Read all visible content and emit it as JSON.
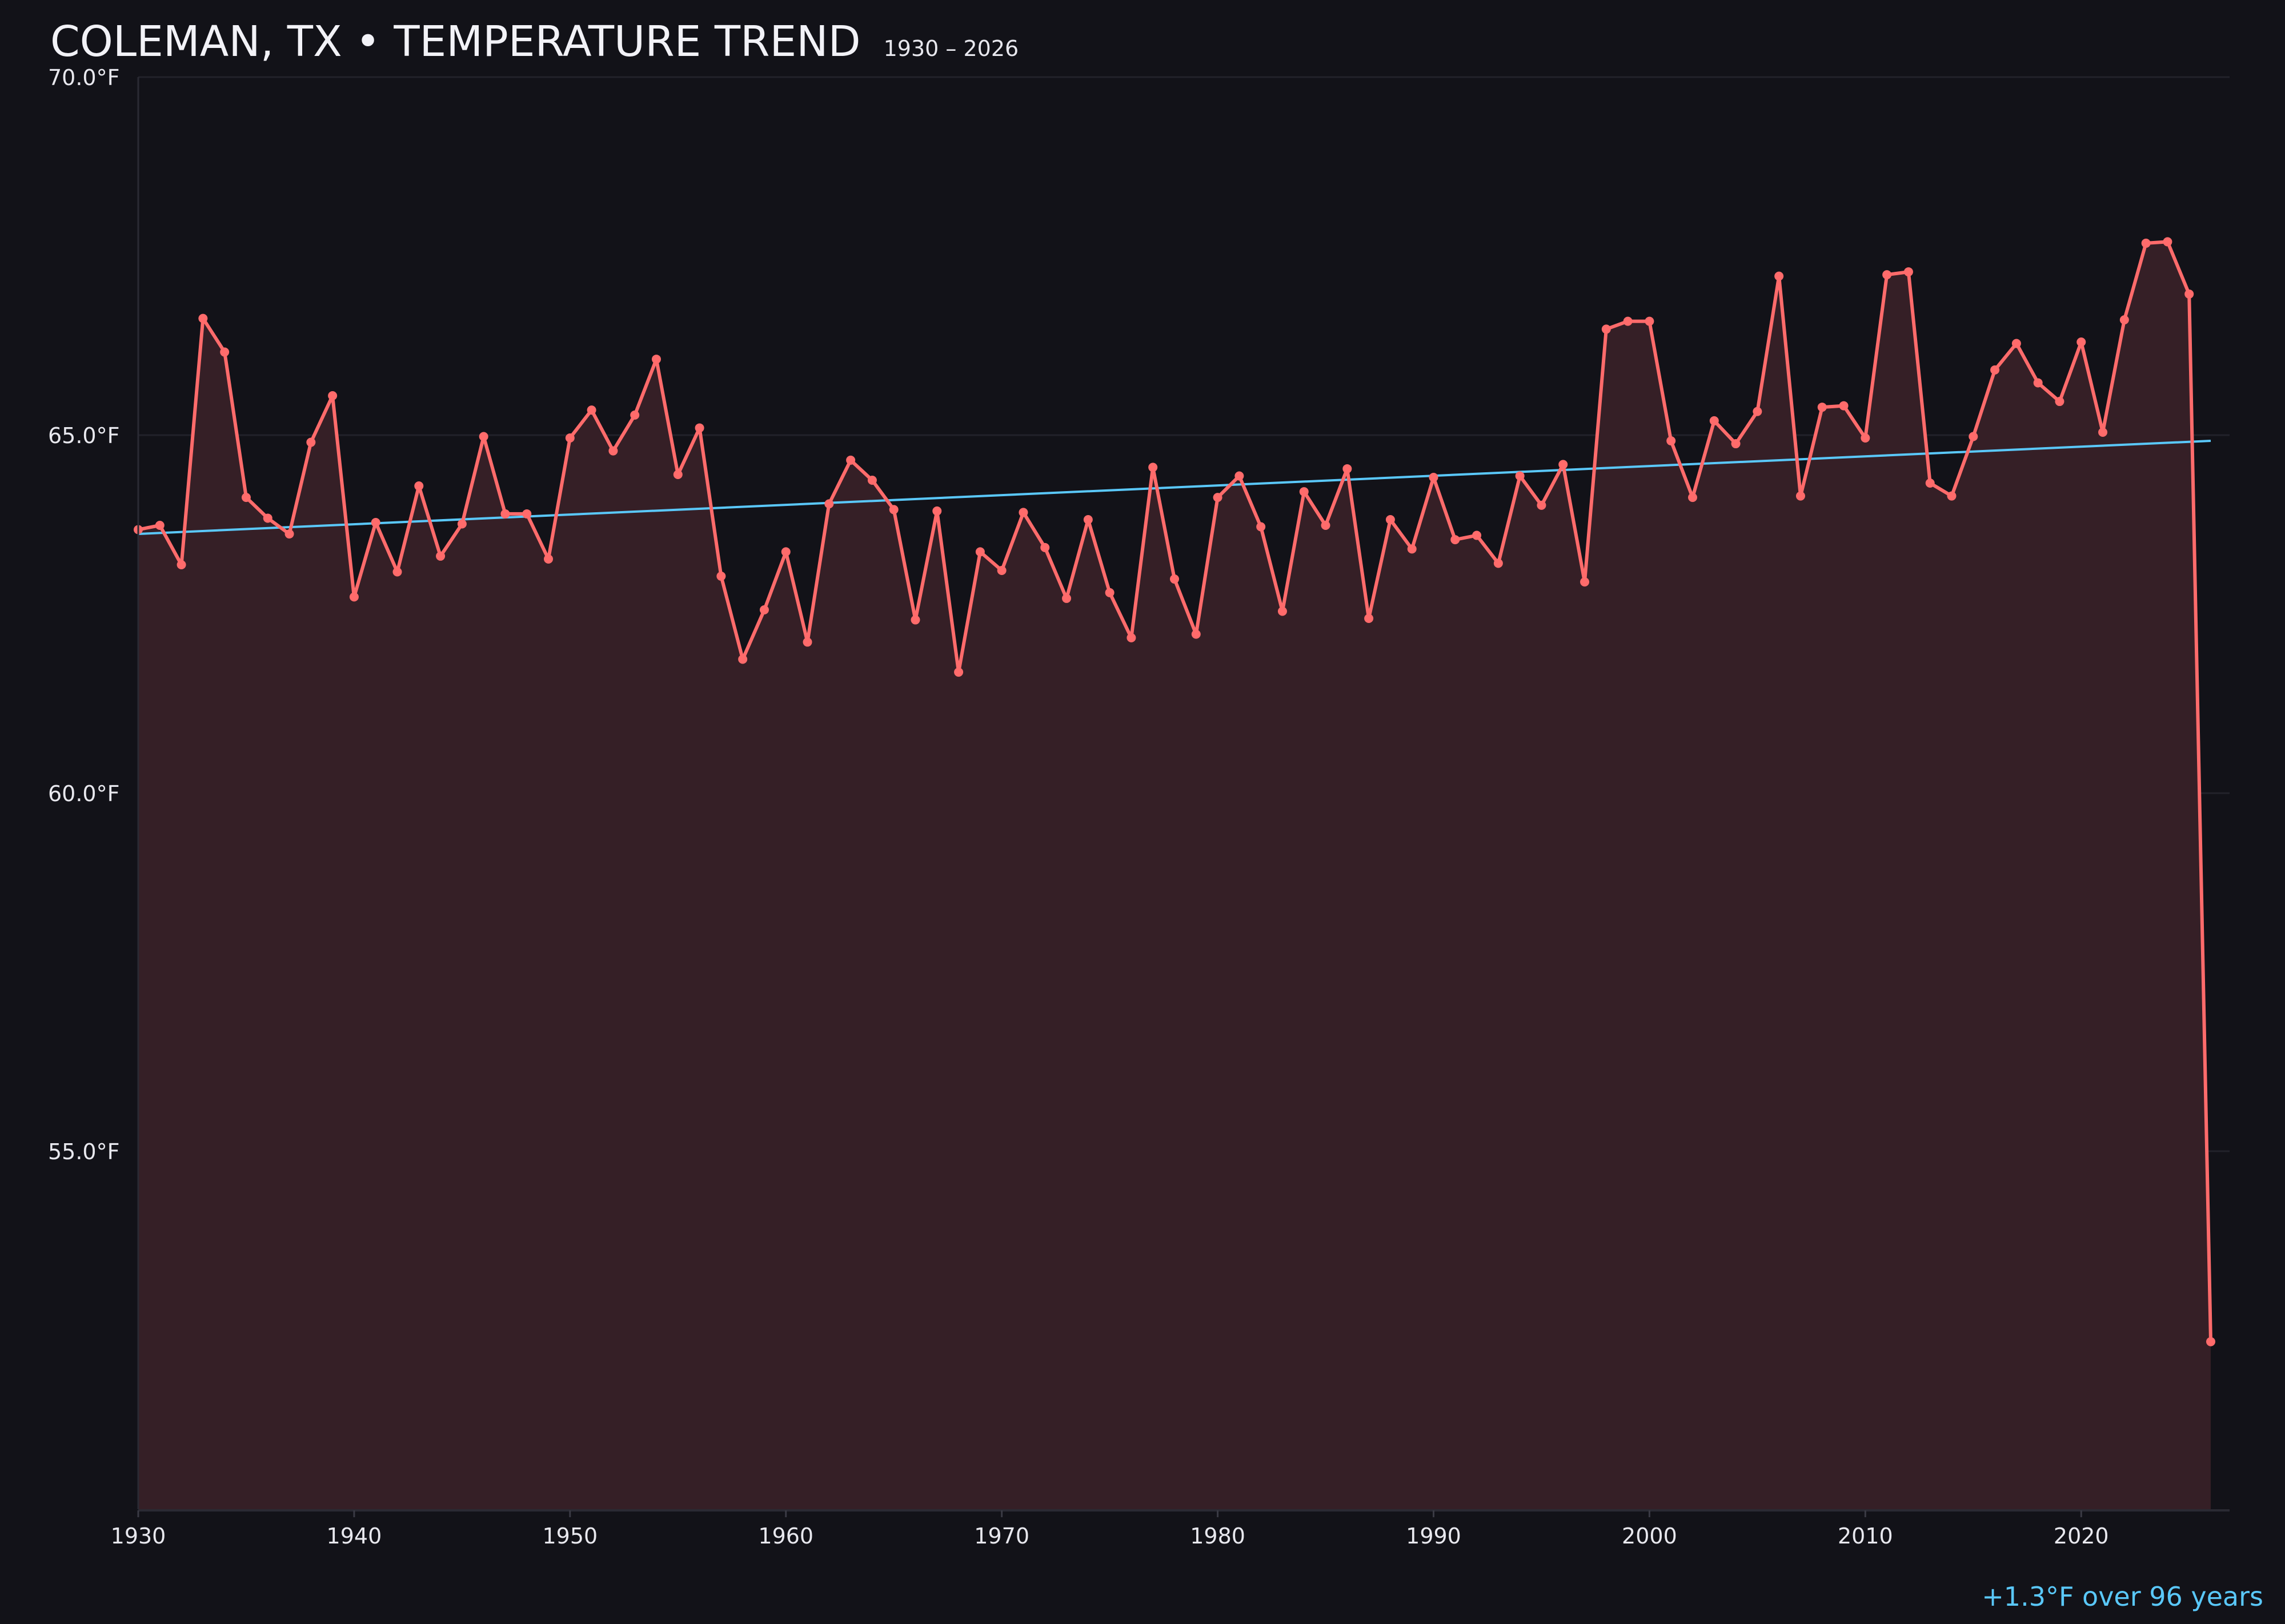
{
  "chart_data": {
    "type": "line",
    "title": "COLEMAN, TX • TEMPERATURE TREND",
    "subtitle": "1930 – 2026",
    "xlabel": "",
    "ylabel": "",
    "xlim": [
      1930,
      2026
    ],
    "ylim": [
      50,
      70
    ],
    "x_ticks": [
      1930,
      1940,
      1950,
      1960,
      1970,
      1980,
      1990,
      2000,
      2010,
      2020
    ],
    "y_ticks": [
      55,
      60,
      65,
      70
    ],
    "y_tick_labels": [
      "55.0°F",
      "60.0°F",
      "65.0°F",
      "70.0°F"
    ],
    "grid": "horizontal",
    "area_fill": true,
    "colors": {
      "background": "#121218",
      "line": "#ff6b6b",
      "fill": "#351f26",
      "trend": "#5ac8fa",
      "grid": "#22222a",
      "text": "#e8e8ee"
    },
    "x": [
      1930,
      1931,
      1932,
      1933,
      1934,
      1935,
      1936,
      1937,
      1938,
      1939,
      1940,
      1941,
      1942,
      1943,
      1944,
      1945,
      1946,
      1947,
      1948,
      1949,
      1950,
      1951,
      1952,
      1953,
      1954,
      1955,
      1956,
      1957,
      1958,
      1959,
      1960,
      1961,
      1962,
      1963,
      1964,
      1965,
      1966,
      1967,
      1968,
      1969,
      1970,
      1971,
      1972,
      1973,
      1974,
      1975,
      1976,
      1977,
      1978,
      1979,
      1980,
      1981,
      1982,
      1983,
      1984,
      1985,
      1986,
      1987,
      1988,
      1989,
      1990,
      1991,
      1992,
      1993,
      1994,
      1995,
      1996,
      1997,
      1998,
      1999,
      2000,
      2001,
      2002,
      2003,
      2004,
      2005,
      2006,
      2007,
      2008,
      2009,
      2010,
      2011,
      2012,
      2013,
      2014,
      2015,
      2016,
      2017,
      2018,
      2019,
      2020,
      2021,
      2022,
      2023,
      2024,
      2025,
      2026
    ],
    "values": [
      63.68,
      63.74,
      63.19,
      66.63,
      66.16,
      64.13,
      63.84,
      63.62,
      64.9,
      65.55,
      62.74,
      63.78,
      63.09,
      64.29,
      63.31,
      63.76,
      64.98,
      63.9,
      63.9,
      63.27,
      64.96,
      65.35,
      64.78,
      65.28,
      66.06,
      64.45,
      65.1,
      63.03,
      61.87,
      62.56,
      63.37,
      62.11,
      64.04,
      64.65,
      64.37,
      63.96,
      62.42,
      63.94,
      61.69,
      63.37,
      63.11,
      63.92,
      63.43,
      62.72,
      63.82,
      62.8,
      62.17,
      64.55,
      62.99,
      62.22,
      64.13,
      64.43,
      63.72,
      62.54,
      64.21,
      63.74,
      64.53,
      62.44,
      63.82,
      63.41,
      64.41,
      63.54,
      63.6,
      63.21,
      64.43,
      64.02,
      64.59,
      62.95,
      66.48,
      66.59,
      66.59,
      64.92,
      64.13,
      65.2,
      64.88,
      65.33,
      67.22,
      64.15,
      65.39,
      65.41,
      64.96,
      67.24,
      67.28,
      64.33,
      64.15,
      64.98,
      65.91,
      66.28,
      65.73,
      65.47,
      66.3,
      65.04,
      66.61,
      67.68,
      67.7,
      66.97,
      52.34
    ],
    "trend": {
      "start": [
        1930,
        63.62
      ],
      "end": [
        2026,
        64.92
      ]
    },
    "annotation": "+1.3°F over 96 years"
  }
}
